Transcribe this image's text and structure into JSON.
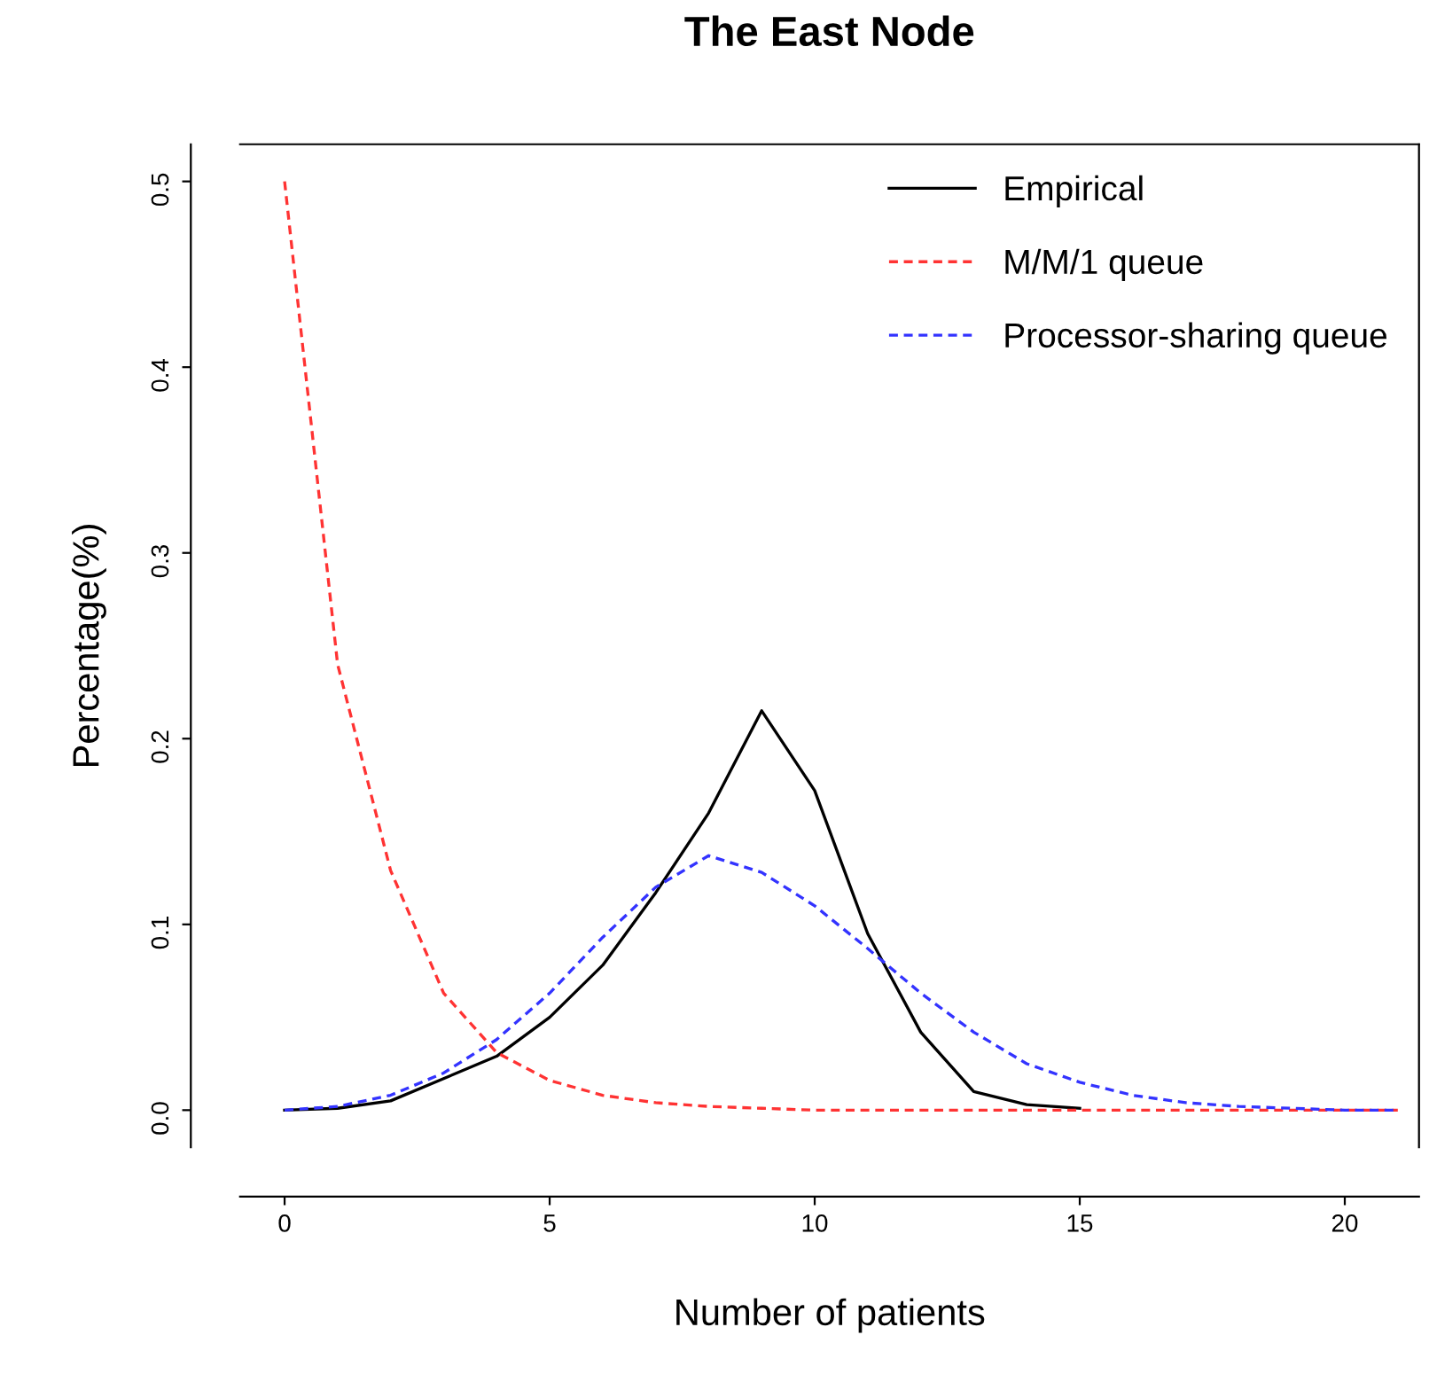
{
  "chart_data": {
    "type": "line",
    "title": "The East Node",
    "xlabel": "Number of patients",
    "ylabel": "Percentage(%)",
    "xlim": [
      -0.84,
      21.4
    ],
    "ylim": [
      -0.02,
      0.52
    ],
    "xticks": [
      0,
      5,
      10,
      15,
      20
    ],
    "yticks": [
      {
        "value": 0,
        "label": "0.0"
      },
      {
        "value": 0.1,
        "label": "0.1"
      },
      {
        "value": 0.2,
        "label": "0.2"
      },
      {
        "value": 0.3,
        "label": "0.3"
      },
      {
        "value": 0.4,
        "label": "0.4"
      },
      {
        "value": 0.5,
        "label": "0.5"
      }
    ],
    "grid": false,
    "legend": "top right",
    "marker": "none",
    "series": [
      {
        "name": "Empirical",
        "color": "#000000",
        "line_style": "solid",
        "x": [
          0,
          1,
          2,
          3,
          4,
          5,
          6,
          7,
          8,
          9,
          10,
          11,
          12,
          13,
          14,
          15
        ],
        "values": [
          0.0,
          0.001,
          0.005,
          0.017,
          0.029,
          0.05,
          0.078,
          0.117,
          0.16,
          0.215,
          0.172,
          0.095,
          0.042,
          0.01,
          0.003,
          0.001
        ]
      },
      {
        "name": "M/M/1 queue",
        "color": "#ff3333",
        "line_style": "dashed",
        "x": [
          0,
          1,
          2,
          3,
          4,
          5,
          6,
          7,
          8,
          9,
          10,
          11,
          12,
          13,
          14,
          15,
          16,
          17,
          18,
          19,
          20,
          21
        ],
        "values": [
          0.5,
          0.24,
          0.129,
          0.063,
          0.031,
          0.016,
          0.008,
          0.004,
          0.002,
          0.001,
          0,
          0,
          0,
          0,
          0,
          0,
          0,
          0,
          0,
          0,
          0,
          0
        ]
      },
      {
        "name": "Processor-sharing queue",
        "color": "#3333ff",
        "line_style": "dashed",
        "x": [
          0,
          1,
          2,
          3,
          4,
          5,
          6,
          7,
          8,
          9,
          10,
          11,
          12,
          13,
          14,
          15,
          16,
          17,
          18,
          19,
          20,
          21
        ],
        "values": [
          0,
          0.002,
          0.008,
          0.02,
          0.038,
          0.063,
          0.093,
          0.12,
          0.137,
          0.128,
          0.11,
          0.087,
          0.063,
          0.042,
          0.025,
          0.015,
          0.008,
          0.004,
          0.002,
          0.001,
          0,
          0
        ]
      }
    ]
  }
}
